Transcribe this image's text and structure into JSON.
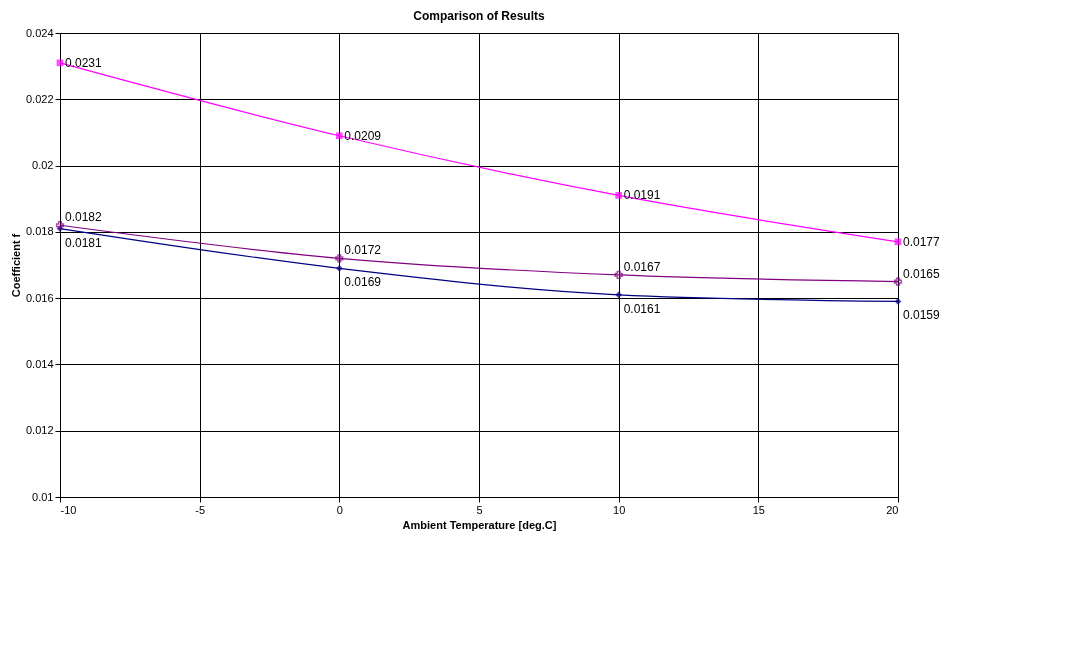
{
  "chart_data": {
    "type": "line",
    "title": "Comparison of Results",
    "xlabel": "Ambient Temperature [deg.C]",
    "ylabel": "Coefficient f",
    "x": [
      -10,
      0,
      10,
      20
    ],
    "series": [
      {
        "color": "#000080",
        "marker": "diamond",
        "values": [
          0.0181,
          0.0169,
          0.0161,
          0.0159
        ]
      },
      {
        "color": "#ff00ff",
        "marker": "square",
        "values": [
          0.0231,
          0.0209,
          0.0191,
          0.0177
        ]
      },
      {
        "color": "#800080",
        "marker": "cross",
        "values": [
          0.0182,
          0.0172,
          0.0167,
          0.0165
        ]
      }
    ],
    "xlim": [
      -10,
      20
    ],
    "xticks": [
      -10,
      -5,
      0,
      5,
      10,
      15,
      20
    ],
    "ylim": [
      0.01,
      0.024
    ],
    "yticks": [
      0.01,
      0.012,
      0.014,
      0.016,
      0.018,
      0.02,
      0.022,
      0.024
    ],
    "grid": true,
    "data_labels": true,
    "line_style": "solid"
  }
}
